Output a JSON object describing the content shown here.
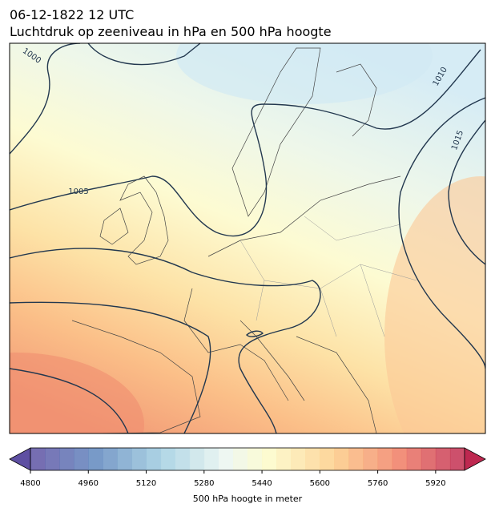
{
  "header": {
    "title": "06-12-1822 12 UTC",
    "subtitle": "Luchtdruk op zeeniveau in hPa en 500 hPa hoogte"
  },
  "map": {
    "isobar_labels": [
      "1000",
      "1005",
      "1010",
      "1015"
    ]
  },
  "colorbar": {
    "lim": [
      4800,
      6000
    ],
    "ticks": [
      4800,
      4960,
      5120,
      5280,
      5440,
      5600,
      5760,
      5920
    ],
    "label": "500 hPa hoogte in meter"
  }
}
